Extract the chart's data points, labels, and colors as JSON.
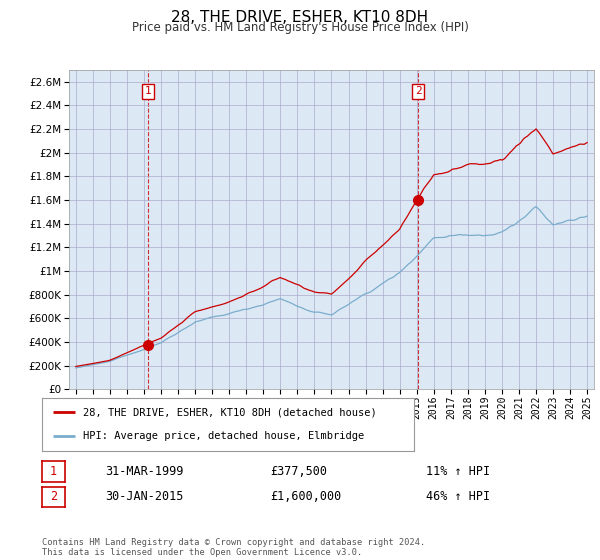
{
  "title": "28, THE DRIVE, ESHER, KT10 8DH",
  "subtitle": "Price paid vs. HM Land Registry's House Price Index (HPI)",
  "line1_label": "28, THE DRIVE, ESHER, KT10 8DH (detached house)",
  "line2_label": "HPI: Average price, detached house, Elmbridge",
  "line1_color": "#cc0000",
  "line2_color": "#7aaccc",
  "sale1_year": 1999.25,
  "sale1_price": 377500,
  "sale1_label": "1",
  "sale1_date": "31-MAR-1999",
  "sale1_amount": "£377,500",
  "sale1_hpi": "11% ↑ HPI",
  "sale2_year": 2015.08,
  "sale2_price": 1600000,
  "sale2_label": "2",
  "sale2_date": "30-JAN-2015",
  "sale2_amount": "£1,600,000",
  "sale2_hpi": "46% ↑ HPI",
  "ylim": [
    0,
    2700000
  ],
  "xlim": [
    1994.6,
    2025.4
  ],
  "yticks": [
    0,
    200000,
    400000,
    600000,
    800000,
    1000000,
    1200000,
    1400000,
    1600000,
    1800000,
    2000000,
    2200000,
    2400000,
    2600000
  ],
  "chart_bg": "#dce9f5",
  "footer": "Contains HM Land Registry data © Crown copyright and database right 2024.\nThis data is licensed under the Open Government Licence v3.0.",
  "background_color": "#ffffff",
  "grid_color": "#aaaacc"
}
